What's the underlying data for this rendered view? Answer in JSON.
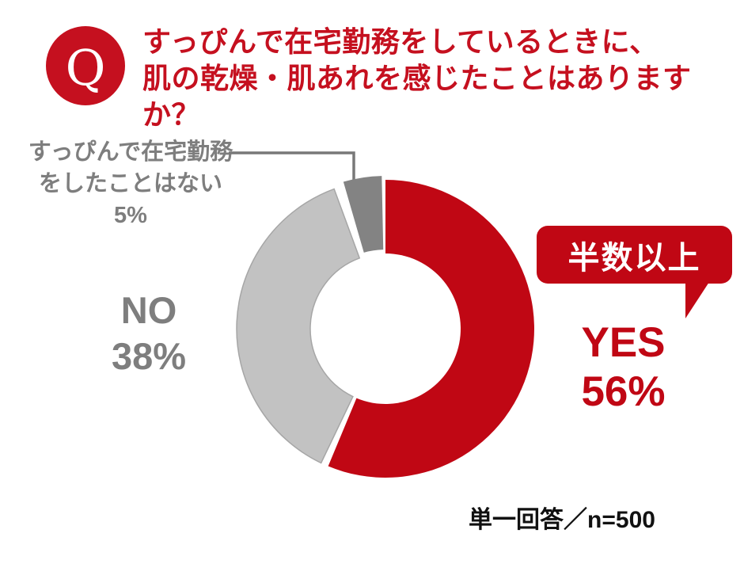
{
  "question": {
    "badge": "Q",
    "title_line1": "すっぴんで在宅勤務をしているときに、",
    "title_line2": "肌の乾燥・肌あれを感じたことはありますか？"
  },
  "chart_data": {
    "type": "pie",
    "subtype": "donut",
    "title": "すっぴんで在宅勤務をしているときに、肌の乾燥・肌あれを感じたことはありますか？",
    "start_angle_deg": 0,
    "direction": "clockwise",
    "note": "単一回答／n=500",
    "segments": [
      {
        "key": "yes",
        "label": "YES",
        "pct": 56,
        "color": "#C00714"
      },
      {
        "key": "no",
        "label": "NO",
        "pct": 38,
        "color": "#C2C2C2",
        "border_color": "#A6A6A6"
      },
      {
        "key": "none",
        "label": "すっぴんで在宅勤務をしたことはない",
        "pct": 5,
        "color": "#838383"
      }
    ]
  },
  "labels": {
    "callout": "半数以上",
    "yes_word": "YES",
    "yes_pct": "56%",
    "no_word": "NO",
    "no_pct": "38%",
    "none_line1": "すっぴんで在宅勤務",
    "none_line2": "をしたことはない",
    "none_pct": "5%",
    "note": "単一回答／n=500"
  },
  "colors": {
    "title_red": "#C5101F",
    "accent_red": "#C00714",
    "light_gray": "#C2C2C2",
    "light_gray_border": "#A6A6A6",
    "dark_gray": "#838383",
    "text_gray": "#7E7E7E",
    "leader_gray": "#787878",
    "note_black": "#111111"
  }
}
